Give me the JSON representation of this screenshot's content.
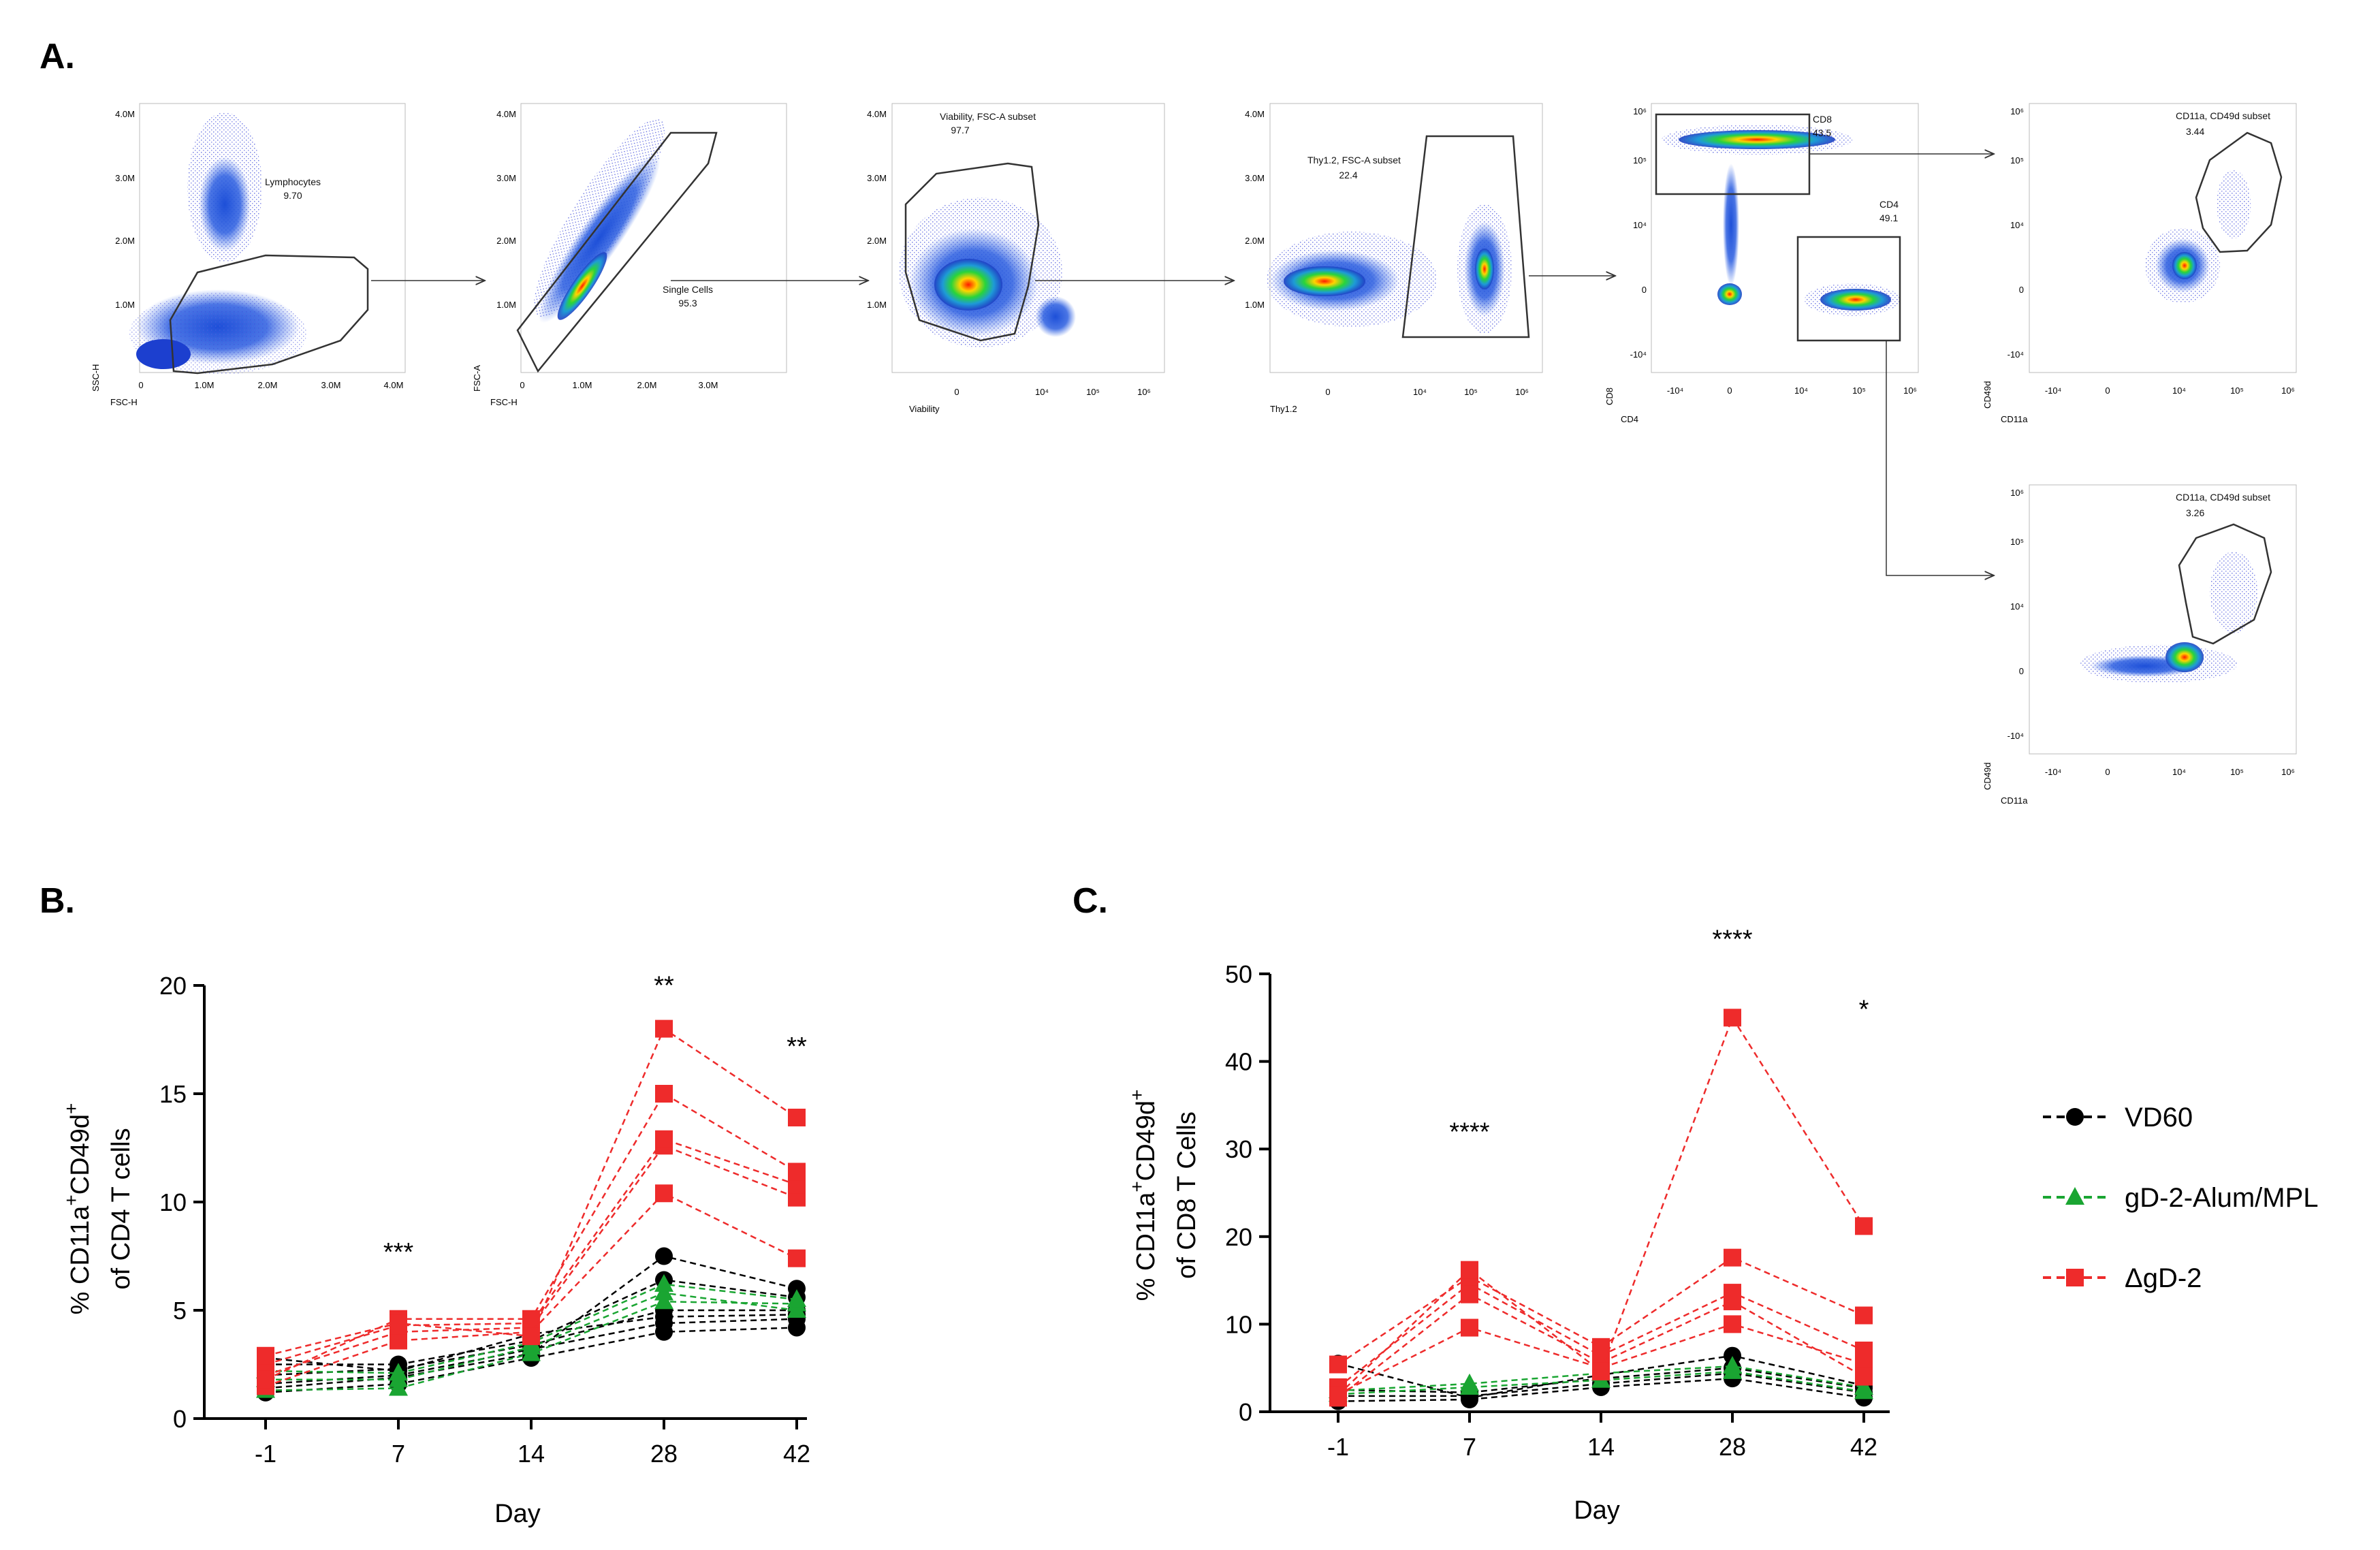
{
  "panels": {
    "a": "A.",
    "b": "B.",
    "c": "C."
  },
  "flow": {
    "plots": [
      {
        "id": "p1",
        "xlabel": "FSC-H",
        "ylabel": "SSC-H",
        "gate": "Lymphocytes",
        "value": "9.70",
        "xticks": [
          "0",
          "1.0M",
          "2.0M",
          "3.0M",
          "4.0M"
        ],
        "yticks": [
          "4.0M",
          "3.0M",
          "2.0M",
          "1.0M"
        ]
      },
      {
        "id": "p2",
        "xlabel": "FSC-H",
        "ylabel": "FSC-A",
        "gate": "Single Cells",
        "value": "95.3",
        "xticks": [
          "0",
          "1.0M",
          "2.0M",
          "3.0M"
        ],
        "yticks": [
          "4.0M",
          "3.0M",
          "2.0M",
          "1.0M"
        ]
      },
      {
        "id": "p3",
        "xlabel": "Viability",
        "ylabel": "",
        "gate": "Viability, FSC-A subset",
        "value": "97.7",
        "xticks": [
          "0",
          "10⁴",
          "10⁵",
          "10⁶"
        ],
        "yticks": [
          "4.0M",
          "3.0M",
          "2.0M",
          "1.0M"
        ]
      },
      {
        "id": "p4",
        "xlabel": "Thy1.2",
        "ylabel": "",
        "gate": "Thy1.2, FSC-A subset",
        "value": "22.4",
        "xticks": [
          "0",
          "10⁴",
          "10⁵",
          "10⁶"
        ],
        "yticks": [
          "4.0M",
          "3.0M",
          "2.0M",
          "1.0M"
        ]
      },
      {
        "id": "p5",
        "xlabel": "CD4",
        "ylabel": "CD8",
        "gate": "CD8",
        "value": "43.5",
        "gate2": "CD4",
        "value2": "49.1",
        "xticks": [
          "-10⁴",
          "0",
          "10⁴",
          "10⁵",
          "10⁶"
        ],
        "yticks": [
          "10⁶",
          "10⁵",
          "10⁴",
          "0",
          "-10⁴"
        ]
      },
      {
        "id": "p6",
        "xlabel": "CD11a",
        "ylabel": "CD49d",
        "gate": "CD11a, CD49d subset",
        "value": "3.44",
        "xticks": [
          "-10⁴",
          "0",
          "10⁴",
          "10⁵",
          "10⁶"
        ],
        "yticks": [
          "10⁶",
          "10⁵",
          "10⁴",
          "0",
          "-10⁴"
        ]
      },
      {
        "id": "p7",
        "xlabel": "CD11a",
        "ylabel": "CD49d",
        "gate": "CD11a, CD49d subset",
        "value": "3.26",
        "xticks": [
          "-10⁴",
          "0",
          "10⁴",
          "10⁵",
          "10⁶"
        ],
        "yticks": [
          "10⁶",
          "10⁵",
          "10⁴",
          "0",
          "-10⁴"
        ]
      }
    ]
  },
  "chart_data": [
    {
      "type": "line",
      "panel": "B.",
      "xlabel": "Day",
      "ylabel_line1": "% CD11a",
      "ylabel_sup1": "+",
      "ylabel_mid": "CD49d",
      "ylabel_sup2": "+",
      "ylabel_line2": "of CD4 T cells",
      "categories": [
        "-1",
        "7",
        "14",
        "28",
        "42"
      ],
      "ylim": [
        0,
        20
      ],
      "yticks": [
        "0",
        "5",
        "10",
        "15",
        "20"
      ],
      "significance": [
        {
          "day": "7",
          "label": "***",
          "y": 7.3
        },
        {
          "day": "28",
          "label": "**",
          "y": 19.6
        },
        {
          "day": "42",
          "label": "**",
          "y": 16.8
        }
      ],
      "series": [
        {
          "group": "VD60",
          "values": [
            1.2,
            1.6,
            2.8,
            4.0,
            4.2
          ]
        },
        {
          "group": "VD60",
          "values": [
            1.6,
            2.0,
            3.2,
            4.4,
            4.6
          ]
        },
        {
          "group": "VD60",
          "values": [
            2.0,
            2.3,
            3.4,
            5.0,
            5.0
          ]
        },
        {
          "group": "VD60",
          "values": [
            2.5,
            2.5,
            3.6,
            6.4,
            5.6
          ]
        },
        {
          "group": "VD60",
          "values": [
            1.4,
            1.9,
            3.0,
            7.5,
            6.0
          ]
        },
        {
          "group": "VD60",
          "values": [
            2.8,
            2.2,
            3.9,
            4.7,
            4.8
          ]
        },
        {
          "group": "gD-2-Alum/MPL",
          "values": [
            1.3,
            1.4,
            3.0,
            5.4,
            5.3
          ]
        },
        {
          "group": "gD-2-Alum/MPL",
          "values": [
            1.8,
            1.8,
            3.3,
            5.8,
            5.0
          ]
        },
        {
          "group": "gD-2-Alum/MPL",
          "values": [
            2.2,
            2.1,
            3.5,
            6.2,
            5.5
          ]
        },
        {
          "group": "ΔgD-2",
          "values": [
            1.5,
            3.6,
            4.0,
            10.4,
            7.4
          ]
        },
        {
          "group": "ΔgD-2",
          "values": [
            2.0,
            4.0,
            4.2,
            12.6,
            10.2
          ]
        },
        {
          "group": "ΔgD-2",
          "values": [
            2.5,
            4.3,
            4.4,
            12.9,
            10.8
          ]
        },
        {
          "group": "ΔgD-2",
          "values": [
            1.8,
            4.6,
            4.6,
            15.0,
            11.4
          ]
        },
        {
          "group": "ΔgD-2",
          "values": [
            2.9,
            4.4,
            3.8,
            18.0,
            13.9
          ]
        }
      ]
    },
    {
      "type": "line",
      "panel": "C.",
      "xlabel": "Day",
      "ylabel_line1": "% CD11a",
      "ylabel_sup1": "+",
      "ylabel_mid": "CD49d",
      "ylabel_sup2": "+",
      "ylabel_line2": "of CD8 T Cells",
      "categories": [
        "-1",
        "7",
        "14",
        "28",
        "42"
      ],
      "ylim": [
        0,
        50
      ],
      "yticks": [
        "0",
        "10",
        "20",
        "30",
        "40",
        "50"
      ],
      "significance": [
        {
          "day": "7",
          "label": "****",
          "y": 31
        },
        {
          "day": "28",
          "label": "****",
          "y": 53
        },
        {
          "day": "42",
          "label": "*",
          "y": 45
        }
      ],
      "series": [
        {
          "group": "VD60",
          "values": [
            1.2,
            1.4,
            2.8,
            3.8,
            1.6
          ]
        },
        {
          "group": "VD60",
          "values": [
            1.8,
            1.8,
            3.2,
            4.4,
            2.2
          ]
        },
        {
          "group": "VD60",
          "values": [
            2.5,
            2.2,
            3.8,
            5.0,
            2.7
          ]
        },
        {
          "group": "VD60",
          "values": [
            5.5,
            1.6,
            4.2,
            6.4,
            3.0
          ]
        },
        {
          "group": "gD-2-Alum/MPL",
          "values": [
            2.0,
            2.8,
            3.6,
            4.6,
            2.3
          ]
        },
        {
          "group": "gD-2-Alum/MPL",
          "values": [
            2.4,
            3.2,
            4.4,
            5.2,
            2.8
          ]
        },
        {
          "group": "ΔgD-2",
          "values": [
            2.0,
            9.6,
            5.0,
            10.0,
            5.5
          ]
        },
        {
          "group": "ΔgD-2",
          "values": [
            1.6,
            13.4,
            5.6,
            12.6,
            4.0
          ]
        },
        {
          "group": "ΔgD-2",
          "values": [
            2.8,
            14.6,
            6.4,
            13.6,
            7.0
          ]
        },
        {
          "group": "ΔgD-2",
          "values": [
            5.4,
            15.4,
            7.4,
            17.6,
            11.0
          ]
        },
        {
          "group": "ΔgD-2",
          "values": [
            1.9,
            16.2,
            4.6,
            45.0,
            21.2
          ]
        }
      ]
    }
  ],
  "legend": [
    {
      "label": "VD60",
      "color": "#000000",
      "marker": "circle"
    },
    {
      "label": "gD-2-Alum/MPL",
      "color": "#1aa532",
      "marker": "triangle"
    },
    {
      "label": "ΔgD-2",
      "color": "#ee2b2b",
      "marker": "square"
    }
  ],
  "colors": {
    "VD60": "#000000",
    "gD-2-Alum/MPL": "#1aa532",
    "ΔgD-2": "#ee2b2b"
  }
}
